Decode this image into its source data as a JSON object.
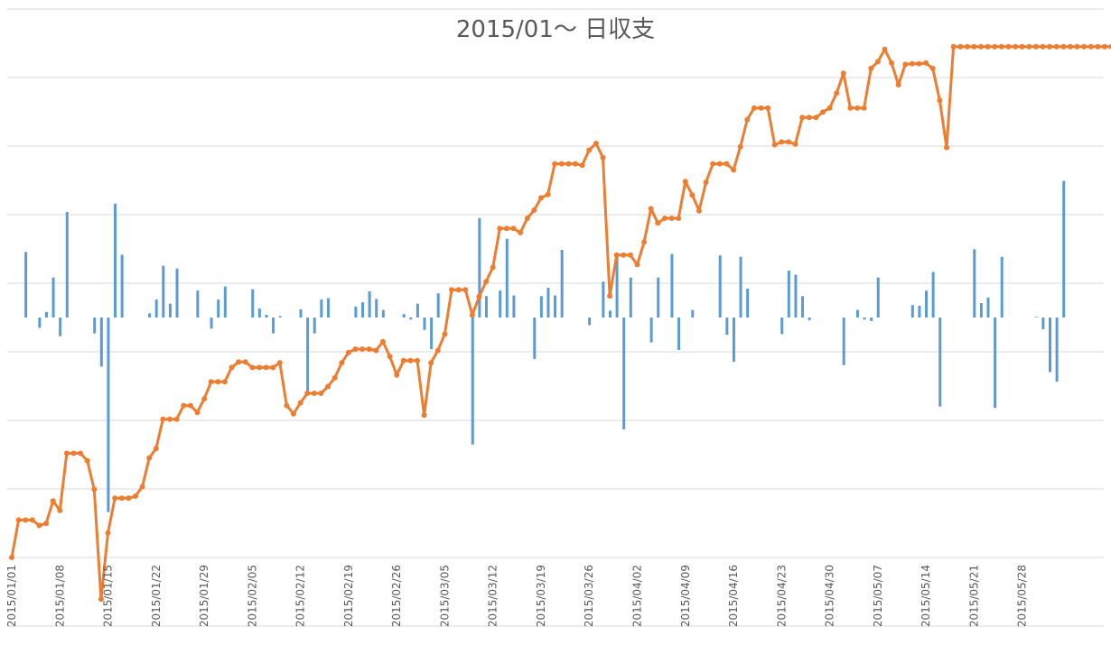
{
  "chart_data": {
    "type": "bar+line",
    "title": "2015/01〜 日収支",
    "x_tick_labels": [
      "2015/01/01",
      "2015/01/08",
      "2015/01/15",
      "2015/01/22",
      "2015/01/29",
      "2015/02/05",
      "2015/02/12",
      "2015/02/19",
      "2015/02/26",
      "2015/03/05",
      "2015/03/12",
      "2015/03/19",
      "2015/03/26",
      "2015/04/02",
      "2015/04/09",
      "2015/04/16",
      "2015/04/23",
      "2015/04/30",
      "2015/05/07",
      "2015/05/14",
      "2015/05/21",
      "2015/05/28"
    ],
    "x_start": "2015/01/01",
    "x_end": "2015/05/31",
    "y_axis_labels_shown": false,
    "grid": true,
    "series": [
      {
        "kind": "bar",
        "color": "#5b9bd5",
        "values": [
          0,
          9.5,
          0,
          -1.5,
          0.8,
          5.8,
          -2.7,
          15.3,
          0,
          0,
          0,
          -2.3,
          -7.1,
          -28.2,
          16.5,
          9.1,
          0,
          0,
          0,
          0.6,
          2.6,
          7.5,
          2.0,
          7.1,
          0,
          0,
          3.9,
          0,
          -1.6,
          2.6,
          4.5,
          0,
          0,
          0,
          4.1,
          1.3,
          0.4,
          -2.3,
          0.2,
          0,
          0,
          1.2,
          -10.8,
          -2.3,
          2.6,
          2.8,
          0,
          0,
          0,
          1.6,
          2.2,
          3.8,
          2.7,
          1.1,
          0,
          0,
          0.5,
          -0.3,
          2.0,
          -1.8,
          -4.6,
          3.5,
          0,
          0,
          0,
          0,
          -18.4,
          14.4,
          3.1,
          0,
          3.9,
          11.4,
          3.2,
          0,
          0,
          -6.0,
          3.1,
          4.3,
          3.2,
          9.8,
          0,
          0,
          0,
          -1.1,
          0,
          5.2,
          1.0,
          8.8,
          -16.2,
          5.8,
          0,
          0,
          -3.6,
          5.8,
          0,
          9.2,
          -4.7,
          0,
          1.1,
          0,
          0,
          0,
          9.0,
          -2.5,
          -6.4,
          8.8,
          4.2,
          0,
          0,
          0,
          0,
          -2.4,
          6.8,
          6.2,
          3.1,
          -0.4,
          0,
          0,
          0,
          0,
          -6.9,
          0,
          1.1,
          -0.3,
          -0.5,
          5.8,
          0,
          0,
          0,
          0,
          1.8,
          1.7,
          3.9,
          6.6,
          -12.9,
          0,
          0,
          0,
          0,
          9.9,
          2.1,
          2.9,
          -13.1,
          8.8,
          0,
          0,
          0,
          0,
          0.1,
          -1.7,
          -7.9,
          -9.3,
          19.8,
          0,
          0,
          0,
          0,
          0,
          0,
          0,
          0,
          0,
          0,
          0,
          0,
          0,
          0,
          0,
          0,
          0,
          0,
          0,
          0,
          0,
          0,
          0,
          0,
          0
        ]
      },
      {
        "kind": "line",
        "color": "#ed7d31",
        "values": [
          0,
          5.5,
          5.5,
          5.5,
          4.7,
          5.0,
          8.3,
          6.9,
          15.3,
          15.3,
          15.3,
          14.2,
          10.0,
          -6.1,
          3.6,
          8.7,
          8.7,
          8.7,
          9.0,
          10.4,
          14.6,
          16.0,
          20.3,
          20.3,
          20.3,
          22.3,
          22.3,
          21.3,
          23.3,
          25.8,
          25.8,
          25.8,
          27.9,
          28.7,
          28.7,
          27.9,
          27.9,
          27.9,
          27.9,
          28.6,
          22.3,
          21.1,
          22.7,
          24.1,
          24.1,
          24.1,
          25.1,
          26.4,
          28.6,
          30.1,
          30.6,
          30.6,
          30.6,
          30.4,
          31.7,
          29.5,
          26.8,
          28.9,
          28.9,
          28.9,
          20.9,
          28.6,
          30.4,
          32.8,
          39.3,
          39.3,
          39.3,
          35.6,
          38.3,
          40.5,
          42.6,
          48.3,
          48.3,
          48.3,
          47.7,
          49.8,
          51.0,
          52.8,
          53.3,
          57.8,
          57.8,
          57.8,
          57.8,
          57.6,
          59.8,
          60.8,
          58.7,
          38.4,
          44.4,
          44.4,
          44.4,
          43.0,
          46.3,
          51.2,
          49.1,
          49.8,
          49.8,
          49.8,
          55.2,
          53.2,
          50.9,
          55.1,
          57.8,
          57.8,
          57.8,
          56.9,
          60.3,
          64.3,
          66.0,
          66.0,
          66.0,
          60.6,
          61.0,
          61.0,
          60.7,
          64.6,
          64.6,
          64.6,
          65.4,
          66.0,
          68.2,
          71.1,
          66.0,
          66.0,
          66.0,
          71.8,
          72.8,
          74.6,
          72.6,
          69.4,
          72.4,
          72.5,
          72.5,
          72.6,
          71.8,
          67.1,
          60.2,
          75.0,
          75.0,
          75.0,
          75.0,
          75.0,
          75.0,
          75.0,
          75.0,
          75.0,
          75.0,
          75.0,
          75.0,
          75.0,
          75.0,
          75.0,
          75.0,
          75.0,
          75.0,
          75.0,
          75.0,
          75.0,
          75.0,
          75.0,
          75.0,
          75.0
        ]
      }
    ]
  }
}
